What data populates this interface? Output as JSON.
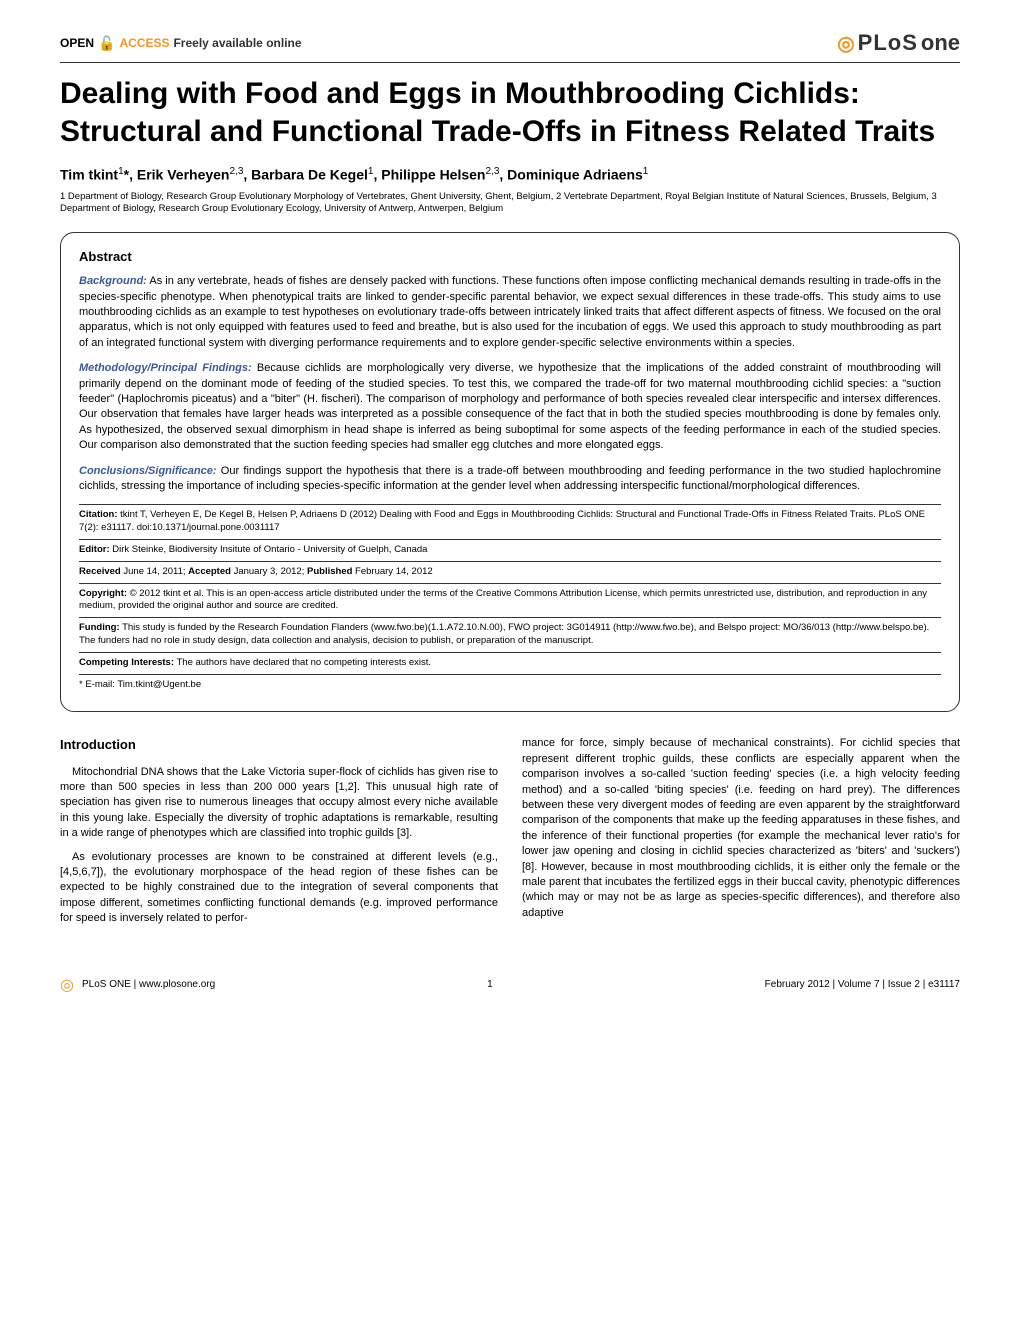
{
  "header": {
    "open_access_label": "OPEN",
    "access_label": "ACCESS",
    "freely_label": "Freely available online",
    "journal_plos": "PLoS",
    "journal_one": "one"
  },
  "title": "Dealing with Food and Eggs in Mouthbrooding Cichlids: Structural and Functional Trade-Offs in Fitness Related Traits",
  "authors_html": "Tim tkint<sup>1</sup>*, Erik Verheyen<sup>2,3</sup>, Barbara De Kegel<sup>1</sup>, Philippe Helsen<sup>2,3</sup>, Dominique Adriaens<sup>1</sup>",
  "affiliations": "1 Department of Biology, Research Group Evolutionary Morphology of Vertebrates, Ghent University, Ghent, Belgium, 2 Vertebrate Department, Royal Belgian Institute of Natural Sciences, Brussels, Belgium, 3 Department of Biology, Research Group Evolutionary Ecology, University of Antwerp, Antwerpen, Belgium",
  "abstract": {
    "heading": "Abstract",
    "background_lead": "Background:",
    "background": " As in any vertebrate, heads of fishes are densely packed with functions. These functions often impose conflicting mechanical demands resulting in trade-offs in the species-specific phenotype. When phenotypical traits are linked to gender-specific parental behavior, we expect sexual differences in these trade-offs. This study aims to use mouthbrooding cichlids as an example to test hypotheses on evolutionary trade-offs between intricately linked traits that affect different aspects of fitness. We focused on the oral apparatus, which is not only equipped with features used to feed and breathe, but is also used for the incubation of eggs. We used this approach to study mouthbrooding as part of an integrated functional system with diverging performance requirements and to explore gender-specific selective environments within a species.",
    "methods_lead": "Methodology/Principal Findings:",
    "methods": " Because cichlids are morphologically very diverse, we hypothesize that the implications of the added constraint of mouthbrooding will primarily depend on the dominant mode of feeding of the studied species. To test this, we compared the trade-off for two maternal mouthbrooding cichlid species: a \"suction feeder\" (Haplochromis piceatus) and a \"biter\" (H. fischeri). The comparison of morphology and performance of both species revealed clear interspecific and intersex differences. Our observation that females have larger heads was interpreted as a possible consequence of the fact that in both the studied species mouthbrooding is done by females only. As hypothesized, the observed sexual dimorphism in head shape is inferred as being suboptimal for some aspects of the feeding performance in each of the studied species. Our comparison also demonstrated that the suction feeding species had smaller egg clutches and more elongated eggs.",
    "conclusions_lead": "Conclusions/Significance:",
    "conclusions": " Our findings support the hypothesis that there is a trade-off between mouthbrooding and feeding performance in the two studied haplochromine cichlids, stressing the importance of including species-specific information at the gender level when addressing interspecific functional/morphological differences."
  },
  "meta": {
    "citation_label": "Citation:",
    "citation": " tkint T, Verheyen E, De Kegel B, Helsen P, Adriaens D (2012) Dealing with Food and Eggs in Mouthbrooding Cichlids: Structural and Functional Trade-Offs in Fitness Related Traits. PLoS ONE 7(2): e31117. doi:10.1371/journal.pone.0031117",
    "editor_label": "Editor:",
    "editor": " Dirk Steinke, Biodiversity Insitute of Ontario - University of Guelph, Canada",
    "received_label": "Received",
    "received": " June 14, 2011; ",
    "accepted_label": "Accepted",
    "accepted": " January 3, 2012; ",
    "published_label": "Published",
    "published": " February 14, 2012",
    "copyright_label": "Copyright:",
    "copyright": " © 2012 tkint et al. This is an open-access article distributed under the terms of the Creative Commons Attribution License, which permits unrestricted use, distribution, and reproduction in any medium, provided the original author and source are credited.",
    "funding_label": "Funding:",
    "funding": " This study is funded by the Research Foundation Flanders (www.fwo.be)(1.1.A72.10.N.00), FWO project: 3G014911 (http://www.fwo.be), and Belspo project: MO/36/013 (http://www.belspo.be). The funders had no role in study design, data collection and analysis, decision to publish, or preparation of the manuscript.",
    "competing_label": "Competing Interests:",
    "competing": " The authors have declared that no competing interests exist.",
    "email": "* E-mail: Tim.tkint@Ugent.be"
  },
  "intro": {
    "heading": "Introduction",
    "p1": "Mitochondrial DNA shows that the Lake Victoria super-flock of cichlids has given rise to more than 500 species in less than 200 000 years [1,2]. This unusual high rate of speciation has given rise to numerous lineages that occupy almost every niche available in this young lake. Especially the diversity of trophic adaptations is remarkable, resulting in a wide range of phenotypes which are classified into trophic guilds [3].",
    "p2": "As evolutionary processes are known to be constrained at different levels (e.g., [4,5,6,7]), the evolutionary morphospace of the head region of these fishes can be expected to be highly constrained due to the integration of several components that impose different, sometimes conflicting functional demands (e.g. improved performance for speed is inversely related to perfor-",
    "p3": "mance for force, simply because of mechanical constraints). For cichlid species that represent different trophic guilds, these conflicts are especially apparent when the comparison involves a so-called 'suction feeding' species (i.e. a high velocity feeding method) and a so-called 'biting species' (i.e. feeding on hard prey). The differences between these very divergent modes of feeding are even apparent by the straightforward comparison of the components that make up the feeding apparatuses in these fishes, and the inference of their functional properties (for example the mechanical lever ratio's for lower jaw opening and closing in cichlid species characterized as 'biters' and 'suckers') [8]. However, because in most mouthbrooding cichlids, it is either only the female or the male parent that incubates the fertilized eggs in their buccal cavity, phenotypic differences (which may or may not be as large as species-specific differences), and therefore also adaptive"
  },
  "footer": {
    "site": "PLoS ONE | www.plosone.org",
    "page": "1",
    "issue": "February 2012 | Volume 7 | Issue 2 | e31117"
  },
  "colors": {
    "accent": "#f7941e",
    "lead": "#3b5998",
    "text": "#000000",
    "border": "#333333"
  },
  "typography": {
    "title_fontsize": 30,
    "body_fontsize": 11,
    "meta_fontsize": 9.5
  }
}
